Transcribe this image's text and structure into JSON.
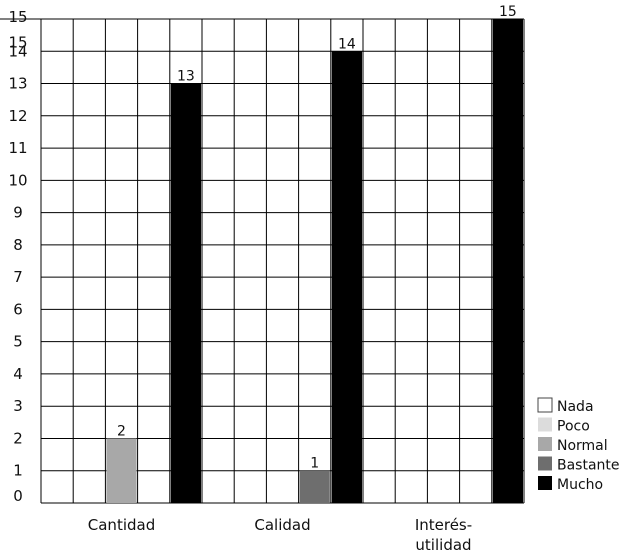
{
  "chart_data": {
    "type": "bar",
    "categories": [
      [
        "Cantidad"
      ],
      [
        "Calidad"
      ],
      [
        "Interés-",
        "utilidad"
      ]
    ],
    "series": [
      {
        "name": "Nada",
        "color": "#ffffff",
        "values": [
          0,
          0,
          0
        ]
      },
      {
        "name": "Poco",
        "color": "#dcdcdc",
        "values": [
          0,
          0,
          0
        ]
      },
      {
        "name": "Normal",
        "color": "#a8a8a8",
        "values": [
          2,
          0,
          0
        ]
      },
      {
        "name": "Bastante",
        "color": "#6e6e6e",
        "values": [
          0,
          1,
          0
        ]
      },
      {
        "name": "Mucho",
        "color": "#000000",
        "values": [
          13,
          14,
          15
        ]
      }
    ],
    "y_ticks": [
      "0",
      "1",
      "2",
      "3",
      "4",
      "5",
      "6",
      "7",
      "8",
      "9",
      "10",
      "11",
      "12",
      "13",
      "14",
      "15",
      "15"
    ],
    "ylim": [
      0,
      15
    ],
    "grid": true,
    "legend_position": "bottom-right"
  }
}
